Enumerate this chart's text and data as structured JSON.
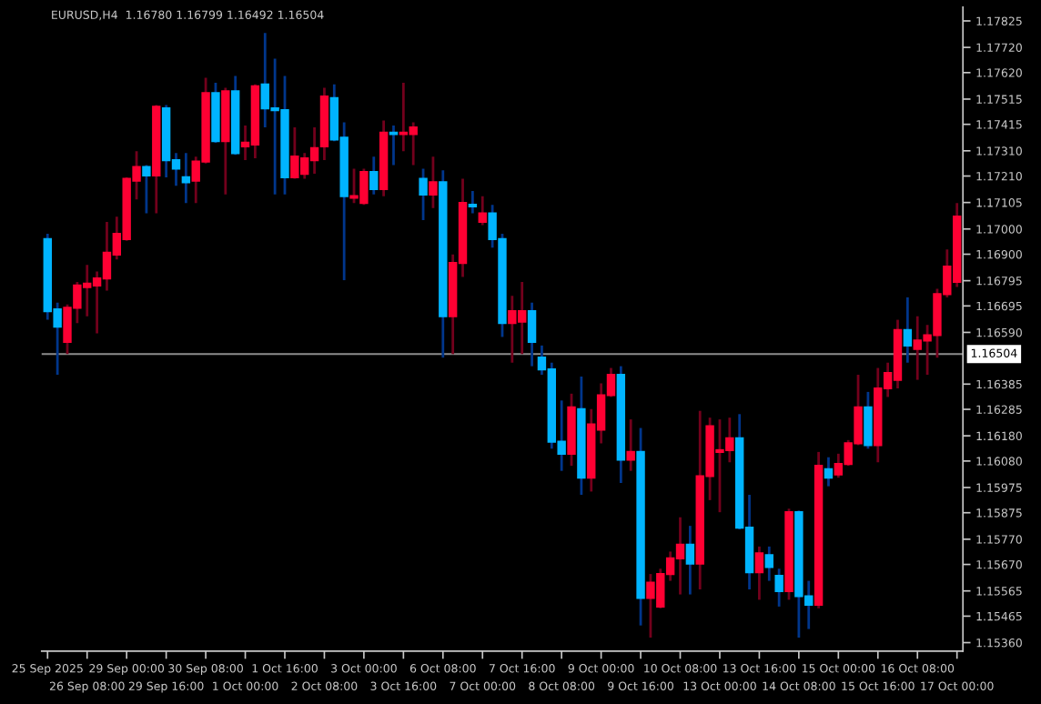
{
  "chart_data": {
    "type": "candlestick",
    "title": "EURUSD,H4  1.16780 1.16799 1.16492 1.16504",
    "categories": [
      "25 Sep 2025",
      null,
      null,
      null,
      "26 Sep 08:00",
      null,
      null,
      null,
      "29 Sep 00:00",
      null,
      null,
      null,
      "29 Sep 16:00",
      null,
      null,
      null,
      "30 Sep 08:00",
      null,
      null,
      null,
      "1 Oct 00:00",
      null,
      null,
      null,
      "1 Oct 16:00",
      null,
      null,
      null,
      "2 Oct 08:00",
      null,
      null,
      null,
      "3 Oct 00:00",
      null,
      null,
      null,
      "3 Oct 16:00",
      null,
      null,
      null,
      "6 Oct 08:00",
      null,
      null,
      null,
      "7 Oct 00:00",
      null,
      null,
      null,
      "7 Oct 16:00",
      null,
      null,
      null,
      "8 Oct 08:00",
      null,
      null,
      null,
      "9 Oct 00:00",
      null,
      null,
      null,
      "9 Oct 16:00",
      null,
      null,
      null,
      "10 Oct 08:00",
      null,
      null,
      null,
      "13 Oct 00:00",
      null,
      null,
      null,
      "13 Oct 16:00",
      null,
      null,
      null,
      "14 Oct 08:00",
      null,
      null,
      null,
      "15 Oct 00:00",
      null,
      null,
      null,
      "15 Oct 16:00",
      null,
      null,
      null,
      "16 Oct 08:00",
      null,
      null,
      null,
      "17 Oct 00:00"
    ],
    "ohlc": [
      [
        1.1696,
        1.16981,
        1.1664,
        1.16674
      ],
      [
        1.16681,
        1.16708,
        1.16422,
        1.16613
      ],
      [
        1.16552,
        1.16701,
        1.16504,
        1.16688
      ],
      [
        1.16688,
        1.1679,
        1.16627,
        1.16776
      ],
      [
        1.1677,
        1.16858,
        1.16654,
        1.16783
      ],
      [
        1.16776,
        1.16831,
        1.16586,
        1.16804
      ],
      [
        1.16804,
        1.17028,
        1.16756,
        1.16906
      ],
      [
        1.16899,
        1.17049,
        1.16879,
        1.16981
      ],
      [
        1.1696,
        1.17205,
        1.16953,
        1.17199
      ],
      [
        1.17192,
        1.17308,
        1.17117,
        1.17246
      ],
      [
        1.17246,
        1.17253,
        1.17062,
        1.17212
      ],
      [
        1.17212,
        1.17491,
        1.17062,
        1.17485
      ],
      [
        1.17478,
        1.17491,
        1.17205,
        1.17273
      ],
      [
        1.17273,
        1.17301,
        1.17171,
        1.17239
      ],
      [
        1.17205,
        1.17301,
        1.17103,
        1.17185
      ],
      [
        1.17192,
        1.17287,
        1.17103,
        1.17267
      ],
      [
        1.17267,
        1.176,
        1.1726,
        1.17539
      ],
      [
        1.17539,
        1.1758,
        1.17342,
        1.17348
      ],
      [
        1.17348,
        1.1756,
        1.17137,
        1.17546
      ],
      [
        1.17546,
        1.17607,
        1.17294,
        1.17301
      ],
      [
        1.17328,
        1.1741,
        1.17273,
        1.17342
      ],
      [
        1.17335,
        1.17573,
        1.1728,
        1.17566
      ],
      [
        1.17573,
        1.17777,
        1.17403,
        1.17478
      ],
      [
        1.17478,
        1.17675,
        1.17137,
        1.17471
      ],
      [
        1.17471,
        1.17607,
        1.17137,
        1.17205
      ],
      [
        1.17205,
        1.17403,
        1.17199,
        1.17287
      ],
      [
        1.17219,
        1.17301,
        1.17199,
        1.1728
      ],
      [
        1.17273,
        1.17403,
        1.17219,
        1.17321
      ],
      [
        1.17328,
        1.1756,
        1.17273,
        1.17525
      ],
      [
        1.17519,
        1.17573,
        1.17348,
        1.17355
      ],
      [
        1.17362,
        1.17423,
        1.16797,
        1.1713
      ],
      [
        1.17124,
        1.17239,
        1.17103,
        1.1713
      ],
      [
        1.17103,
        1.17239,
        1.17096,
        1.17226
      ],
      [
        1.17226,
        1.17287,
        1.17137,
        1.17158
      ],
      [
        1.17158,
        1.1743,
        1.1713,
        1.17382
      ],
      [
        1.17382,
        1.1741,
        1.17253,
        1.17376
      ],
      [
        1.17376,
        1.1758,
        1.17308,
        1.17382
      ],
      [
        1.17376,
        1.17423,
        1.17253,
        1.17403
      ],
      [
        1.17199,
        1.17239,
        1.17035,
        1.17137
      ],
      [
        1.17137,
        1.17287,
        1.17083,
        1.17185
      ],
      [
        1.17185,
        1.17233,
        1.1649,
        1.16654
      ],
      [
        1.16654,
        1.16899,
        1.16504,
        1.16865
      ],
      [
        1.16865,
        1.17199,
        1.1681,
        1.17103
      ],
      [
        1.17096,
        1.17151,
        1.17062,
        1.1709
      ],
      [
        1.17028,
        1.1713,
        1.17015,
        1.17062
      ],
      [
        1.17062,
        1.17096,
        1.16926,
        1.1696
      ],
      [
        1.1696,
        1.16981,
        1.16572,
        1.16627
      ],
      [
        1.16627,
        1.16735,
        1.1647,
        1.16674
      ],
      [
        1.16633,
        1.1679,
        1.16504,
        1.16674
      ],
      [
        1.16674,
        1.16708,
        1.16456,
        1.16552
      ],
      [
        1.1649,
        1.16538,
        1.16422,
        1.16443
      ],
      [
        1.16443,
        1.1647,
        1.16129,
        1.16157
      ],
      [
        1.16157,
        1.1632,
        1.16041,
        1.16109
      ],
      [
        1.16109,
        1.16347,
        1.16061,
        1.16293
      ],
      [
        1.16286,
        1.16415,
        1.15946,
        1.16014
      ],
      [
        1.16014,
        1.16286,
        1.15959,
        1.16225
      ],
      [
        1.16204,
        1.16388,
        1.1615,
        1.16341
      ],
      [
        1.16341,
        1.16449,
        1.16334,
        1.16422
      ],
      [
        1.16422,
        1.16456,
        1.15993,
        1.16085
      ],
      [
        1.16085,
        1.16245,
        1.16041,
        1.16116
      ],
      [
        1.16116,
        1.16211,
        1.15428,
        1.15537
      ],
      [
        1.15537,
        1.15632,
        1.1538,
        1.15598
      ],
      [
        1.15503,
        1.15653,
        1.15496,
        1.15632
      ],
      [
        1.15632,
        1.15721,
        1.15605,
        1.15694
      ],
      [
        1.15694,
        1.15857,
        1.15551,
        1.15748
      ],
      [
        1.15748,
        1.15823,
        1.15551,
        1.15673
      ],
      [
        1.15673,
        1.16279,
        1.15571,
        1.1602
      ],
      [
        1.1602,
        1.16252,
        1.15925,
        1.16218
      ],
      [
        1.16116,
        1.16245,
        1.15877,
        1.16123
      ],
      [
        1.16123,
        1.16252,
        1.16075,
        1.1617
      ],
      [
        1.1617,
        1.16266,
        1.15809,
        1.15816
      ],
      [
        1.15816,
        1.15946,
        1.15571,
        1.15639
      ],
      [
        1.15639,
        1.15741,
        1.1553,
        1.15714
      ],
      [
        1.15707,
        1.15741,
        1.15605,
        1.1566
      ],
      [
        1.15625,
        1.15653,
        1.15503,
        1.15564
      ],
      [
        1.15564,
        1.15891,
        1.1553,
        1.15877
      ],
      [
        1.15877,
        1.15884,
        1.1538,
        1.15544
      ],
      [
        1.15544,
        1.15605,
        1.15414,
        1.1551
      ],
      [
        1.1551,
        1.16116,
        1.15496,
        1.16061
      ],
      [
        1.16048,
        1.16095,
        1.1598,
        1.16014
      ],
      [
        1.16027,
        1.16109,
        1.16014,
        1.16068
      ],
      [
        1.16068,
        1.16163,
        1.16061,
        1.1615
      ],
      [
        1.1615,
        1.16422,
        1.16143,
        1.16293
      ],
      [
        1.16293,
        1.16354,
        1.16129,
        1.16143
      ],
      [
        1.16143,
        1.16449,
        1.16075,
        1.16368
      ],
      [
        1.16368,
        1.1647,
        1.16334,
        1.16429
      ],
      [
        1.16402,
        1.1664,
        1.16368,
        1.16599
      ],
      [
        1.16599,
        1.16729,
        1.1647,
        1.16538
      ],
      [
        1.16524,
        1.16654,
        1.16402,
        1.16558
      ],
      [
        1.16558,
        1.1662,
        1.16422,
        1.16579
      ],
      [
        1.16579,
        1.16763,
        1.1649,
        1.16742
      ],
      [
        1.16742,
        1.16919,
        1.16729,
        1.16851
      ],
      [
        1.1679,
        1.17103,
        1.1677,
        1.17049
      ]
    ],
    "colors": [
      "#00b4ff",
      "#00b4ff",
      "#ff0033",
      "#ff0033",
      "#ff0033",
      "#ff0033",
      "#ff0033",
      "#ff0033",
      "#ff0033",
      "#ff0033",
      "#00b4ff",
      "#ff0033",
      "#00b4ff",
      "#00b4ff",
      "#00b4ff",
      "#ff0033",
      "#ff0033",
      "#00b4ff",
      "#ff0033",
      "#00b4ff",
      "#ff0033",
      "#ff0033",
      "#00b4ff",
      "#00b4ff",
      "#00b4ff",
      "#ff0033",
      "#ff0033",
      "#ff0033",
      "#ff0033",
      "#00b4ff",
      "#00b4ff",
      "#ff0033",
      "#ff0033",
      "#00b4ff",
      "#ff0033",
      "#00b4ff",
      "#ff0033",
      "#ff0033",
      "#00b4ff",
      "#ff0033",
      "#00b4ff",
      "#ff0033",
      "#ff0033",
      "#00b4ff",
      "#ff0033",
      "#00b4ff",
      "#00b4ff",
      "#ff0033",
      "#ff0033",
      "#00b4ff",
      "#00b4ff",
      "#00b4ff",
      "#00b4ff",
      "#ff0033",
      "#00b4ff",
      "#ff0033",
      "#ff0033",
      "#ff0033",
      "#00b4ff",
      "#ff0033",
      "#00b4ff",
      "#ff0033",
      "#ff0033",
      "#ff0033",
      "#ff0033",
      "#00b4ff",
      "#ff0033",
      "#ff0033",
      "#ff0033",
      "#ff0033",
      "#00b4ff",
      "#00b4ff",
      "#ff0033",
      "#00b4ff",
      "#00b4ff",
      "#ff0033",
      "#00b4ff",
      "#00b4ff",
      "#ff0033",
      "#00b4ff",
      "#ff0033",
      "#ff0033",
      "#ff0033",
      "#00b4ff",
      "#ff0033",
      "#ff0033",
      "#ff0033",
      "#00b4ff",
      "#ff0033",
      "#ff0033",
      "#ff0033",
      "#ff0033",
      "#ff0033"
    ],
    "ylim": [
      1.15326,
      1.1788
    ],
    "yticks": [
      1.17825,
      {
        "value": 1.1772,
        "label": "1.17720"
      },
      {
        "value": 1.1762,
        "label": "1.17620"
      },
      1.17515,
      1.17415,
      {
        "value": 1.1731,
        "label": "1.17310"
      },
      {
        "value": 1.1721,
        "label": "1.17210"
      },
      1.17105,
      {
        "value": 1.17,
        "label": "1.17000"
      },
      {
        "value": 1.169,
        "label": "1.16900"
      },
      1.16795,
      1.16695,
      {
        "value": 1.1659,
        "label": "1.16590"
      },
      1.16385,
      1.16285,
      {
        "value": 1.1618,
        "label": "1.16180"
      },
      {
        "value": 1.1608,
        "label": "1.16080"
      },
      1.15975,
      1.15875,
      {
        "value": 1.1577,
        "label": "1.15770"
      },
      {
        "value": 1.1567,
        "label": "1.15670"
      },
      1.15565,
      1.15465,
      {
        "value": 1.1536,
        "label": "1.15360"
      }
    ],
    "ref_lines": [
      {
        "axis": "y",
        "value": 1.16504,
        "label": "1.16504",
        "color": "#8c8c8c"
      }
    ],
    "grid": false,
    "legend": false
  }
}
